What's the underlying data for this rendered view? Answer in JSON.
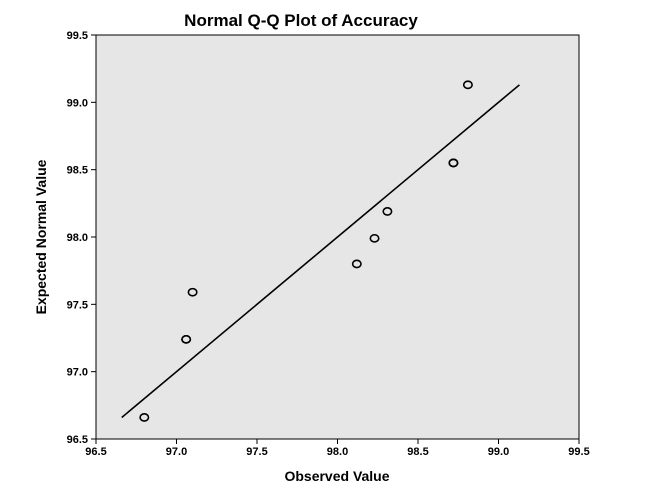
{
  "chart_data": {
    "type": "scatter",
    "title": "Normal Q-Q Plot of Accuracy",
    "xlabel": "Observed Value",
    "ylabel": "Expected Normal Value",
    "xlim": [
      96.5,
      99.5
    ],
    "ylim": [
      96.5,
      99.5
    ],
    "x_ticks": [
      96.5,
      97.0,
      97.5,
      98.0,
      98.5,
      99.0,
      99.5
    ],
    "y_ticks": [
      96.5,
      97.0,
      97.5,
      98.0,
      98.5,
      99.0,
      99.5
    ],
    "x_tick_labels": [
      "96.5",
      "97.0",
      "97.5",
      "98.0",
      "98.5",
      "99.0",
      "99.5"
    ],
    "y_tick_labels": [
      "96.5",
      "97.0",
      "97.5",
      "98.0",
      "98.5",
      "99.0",
      "99.5"
    ],
    "grid": false,
    "points": [
      {
        "x": 96.8,
        "y": 96.66
      },
      {
        "x": 97.06,
        "y": 97.24
      },
      {
        "x": 97.06,
        "y": 97.24
      },
      {
        "x": 97.1,
        "y": 97.59
      },
      {
        "x": 98.12,
        "y": 97.8
      },
      {
        "x": 98.23,
        "y": 97.99
      },
      {
        "x": 98.31,
        "y": 98.19
      },
      {
        "x": 98.72,
        "y": 98.55
      },
      {
        "x": 98.72,
        "y": 98.55
      },
      {
        "x": 98.81,
        "y": 99.13
      }
    ],
    "reference_line": {
      "x": [
        96.66,
        99.13
      ],
      "y": [
        96.66,
        99.13
      ]
    },
    "colors": {
      "plot_background": "#e6e6e6",
      "marker_stroke": "#000000",
      "line": "#000000"
    }
  }
}
